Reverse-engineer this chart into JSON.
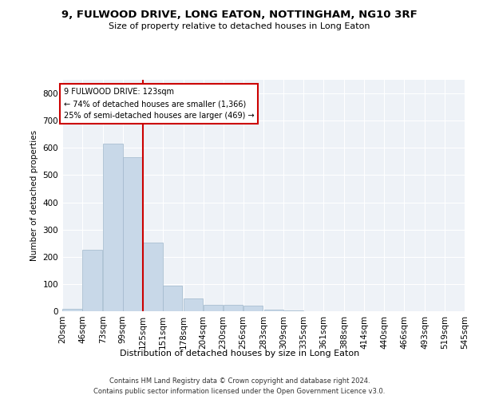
{
  "title": "9, FULWOOD DRIVE, LONG EATON, NOTTINGHAM, NG10 3RF",
  "subtitle": "Size of property relative to detached houses in Long Eaton",
  "xlabel": "Distribution of detached houses by size in Long Eaton",
  "ylabel": "Number of detached properties",
  "bar_color": "#c8d8e8",
  "bar_edge_color": "#a0b8cc",
  "background_color": "#eef2f7",
  "vline_x": 125,
  "vline_color": "#cc0000",
  "annotation_text": "9 FULWOOD DRIVE: 123sqm\n← 74% of detached houses are smaller (1,366)\n25% of semi-detached houses are larger (469) →",
  "annotation_box_color": "white",
  "annotation_box_edge": "#cc0000",
  "bin_edges": [
    20,
    46,
    73,
    99,
    125,
    151,
    178,
    204,
    230,
    256,
    283,
    309,
    335,
    361,
    388,
    414,
    440,
    466,
    493,
    519,
    545
  ],
  "bar_heights": [
    10,
    225,
    615,
    565,
    252,
    95,
    48,
    22,
    22,
    20,
    7,
    2,
    0,
    0,
    0,
    0,
    0,
    0,
    0,
    0
  ],
  "tick_labels": [
    "20sqm",
    "46sqm",
    "73sqm",
    "99sqm",
    "125sqm",
    "151sqm",
    "178sqm",
    "204sqm",
    "230sqm",
    "256sqm",
    "283sqm",
    "309sqm",
    "335sqm",
    "361sqm",
    "388sqm",
    "414sqm",
    "440sqm",
    "466sqm",
    "493sqm",
    "519sqm",
    "545sqm"
  ],
  "footer_text": "Contains HM Land Registry data © Crown copyright and database right 2024.\nContains public sector information licensed under the Open Government Licence v3.0.",
  "ylim": [
    0,
    850
  ],
  "yticks": [
    0,
    100,
    200,
    300,
    400,
    500,
    600,
    700,
    800
  ]
}
